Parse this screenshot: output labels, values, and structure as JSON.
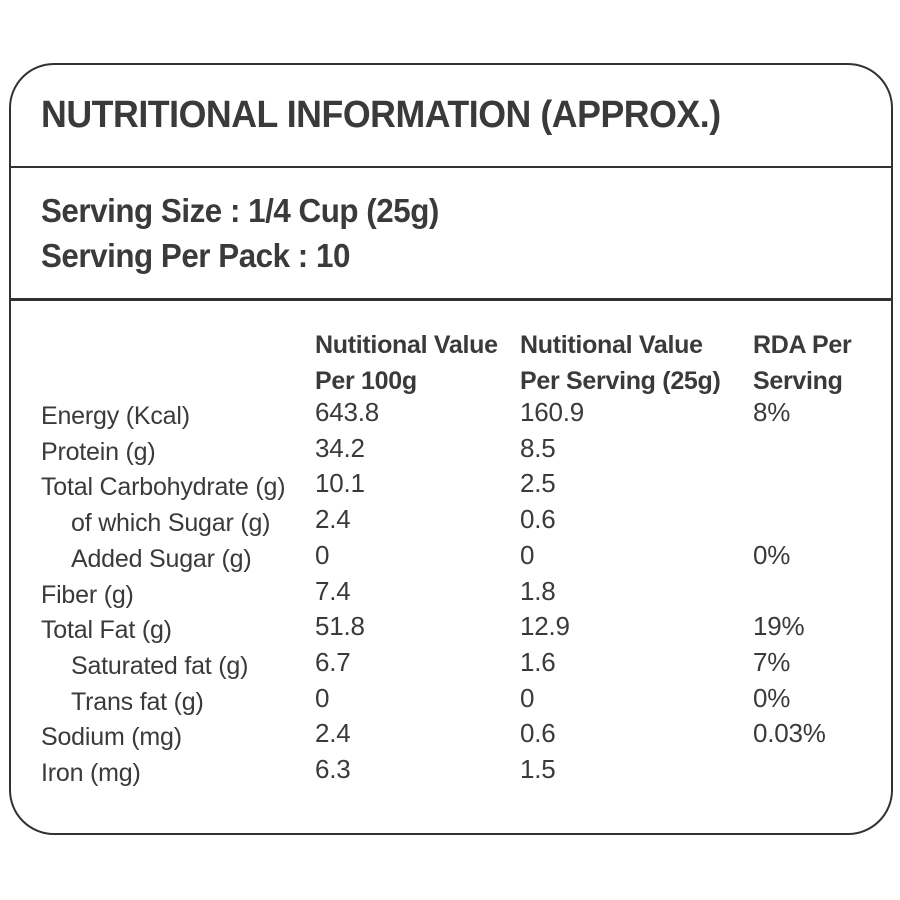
{
  "colors": {
    "text": "#3a3a3c",
    "border": "#323234",
    "background": "#ffffff"
  },
  "label": {
    "title": "NUTRITIONAL INFORMATION (APPROX.)",
    "serving_size": "Serving Size : 1/4 Cup (25g)",
    "serving_per_pack": "Serving Per Pack : 10"
  },
  "table": {
    "headers": [
      {
        "line1": "Nutitional Value",
        "line2": "Per 100g"
      },
      {
        "line1": "Nutitional Value",
        "line2": "Per Serving (25g)"
      },
      {
        "line1": "RDA Per",
        "line2": "Serving"
      }
    ],
    "rows": [
      {
        "nutrient": "Energy (Kcal)",
        "per_100g": "643.8",
        "per_serving": "160.9",
        "rda": "8%",
        "indent": false
      },
      {
        "nutrient": "Protein (g)",
        "per_100g": "34.2",
        "per_serving": "8.5",
        "rda": "",
        "indent": false
      },
      {
        "nutrient": "Total Carbohydrate (g)",
        "per_100g": "10.1",
        "per_serving": "2.5",
        "rda": "",
        "indent": false
      },
      {
        "nutrient": "of which Sugar (g)",
        "per_100g": "2.4",
        "per_serving": "0.6",
        "rda": "",
        "indent": true
      },
      {
        "nutrient": "Added Sugar (g)",
        "per_100g": "0",
        "per_serving": "0",
        "rda": "0%",
        "indent": true
      },
      {
        "nutrient": "Fiber (g)",
        "per_100g": "7.4",
        "per_serving": "1.8",
        "rda": "",
        "indent": false
      },
      {
        "nutrient": "Total Fat (g)",
        "per_100g": "51.8",
        "per_serving": "12.9",
        "rda": "19%",
        "indent": false
      },
      {
        "nutrient": "Saturated fat (g)",
        "per_100g": "6.7",
        "per_serving": "1.6",
        "rda": "7%",
        "indent": true
      },
      {
        "nutrient": "Trans fat (g)",
        "per_100g": "0",
        "per_serving": "0",
        "rda": "0%",
        "indent": true
      },
      {
        "nutrient": "Sodium (mg)",
        "per_100g": "2.4",
        "per_serving": "0.6",
        "rda": "0.03%",
        "indent": false
      },
      {
        "nutrient": "Iron (mg)",
        "per_100g": "6.3",
        "per_serving": "1.5",
        "rda": "",
        "indent": false
      }
    ]
  }
}
